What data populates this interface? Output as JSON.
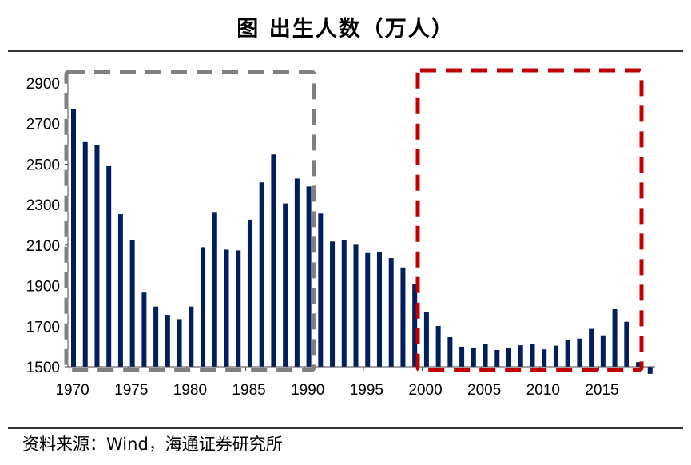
{
  "chart_data": {
    "type": "bar",
    "title": "图  出生人数（万人）",
    "xlabel": "",
    "ylabel": "",
    "ylim": [
      1500,
      2900
    ],
    "yticks": [
      1500,
      1700,
      1900,
      2100,
      2300,
      2500,
      2700,
      2900
    ],
    "xticks": [
      "1970",
      "1975",
      "1980",
      "1985",
      "1990",
      "1995",
      "2000",
      "2005",
      "2010",
      "2015"
    ],
    "categories": [
      1970,
      1971,
      1972,
      1973,
      1974,
      1975,
      1976,
      1977,
      1978,
      1979,
      1980,
      1981,
      1982,
      1983,
      1984,
      1985,
      1986,
      1987,
      1988,
      1989,
      1990,
      1991,
      1992,
      1993,
      1994,
      1995,
      1996,
      1997,
      1998,
      1999,
      2000,
      2001,
      2002,
      2003,
      2004,
      2005,
      2006,
      2007,
      2008,
      2009,
      2010,
      2011,
      2012,
      2013,
      2014,
      2015,
      2016,
      2017,
      2018,
      2019
    ],
    "values": [
      2771,
      2609,
      2593,
      2490,
      2253,
      2126,
      1866,
      1797,
      1756,
      1735,
      1797,
      2090,
      2264,
      2078,
      2074,
      2226,
      2410,
      2548,
      2306,
      2429,
      2390,
      2256,
      2118,
      2124,
      2102,
      2061,
      2066,
      2036,
      1990,
      1907,
      1769,
      1701,
      1646,
      1599,
      1592,
      1614,
      1583,
      1592,
      1606,
      1613,
      1586,
      1604,
      1633,
      1639,
      1687,
      1655,
      1784,
      1722,
      1523,
      1465
    ],
    "bar_color": "#001f5c",
    "highlight_boxes": [
      {
        "from": 1970,
        "to": 1990,
        "color": "#808080"
      },
      {
        "from": 2000,
        "to": 2018,
        "color": "#c00000"
      }
    ],
    "grid": false,
    "source": "资料来源：Wind，海通证券研究所"
  }
}
